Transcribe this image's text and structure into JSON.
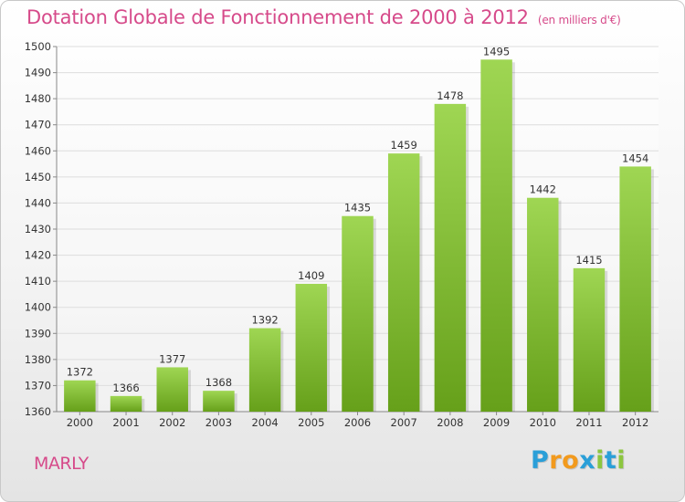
{
  "title": "Dotation Globale de Fonctionnement de 2000 à 2012",
  "subtitle": "(en milliers d'€)",
  "commune": "MARLY",
  "logo": {
    "letters": [
      "P",
      "r",
      "o",
      "x",
      "i",
      "t",
      "i"
    ],
    "colors": [
      "#2a9fd8",
      "#f29a1d",
      "#f29a1d",
      "#2a9fd8",
      "#8cc63f",
      "#2a9fd8",
      "#8cc63f"
    ]
  },
  "colors": {
    "bar_top": "#9fd653",
    "bar_bottom": "#66a01a",
    "title": "#d64a8a",
    "grid": "#dddddd"
  },
  "chart_data": {
    "type": "bar",
    "title": "Dotation Globale de Fonctionnement de 2000 à 2012",
    "xlabel": "",
    "ylabel": "",
    "categories": [
      "2000",
      "2001",
      "2002",
      "2003",
      "2004",
      "2005",
      "2006",
      "2007",
      "2008",
      "2009",
      "2010",
      "2011",
      "2012"
    ],
    "values": [
      1372,
      1366,
      1377,
      1368,
      1392,
      1409,
      1435,
      1459,
      1478,
      1495,
      1442,
      1415,
      1454
    ],
    "ylim": [
      1360,
      1500
    ],
    "yticks": [
      1360,
      1370,
      1380,
      1390,
      1400,
      1410,
      1420,
      1430,
      1440,
      1450,
      1460,
      1470,
      1480,
      1490,
      1500
    ],
    "grid": true
  }
}
